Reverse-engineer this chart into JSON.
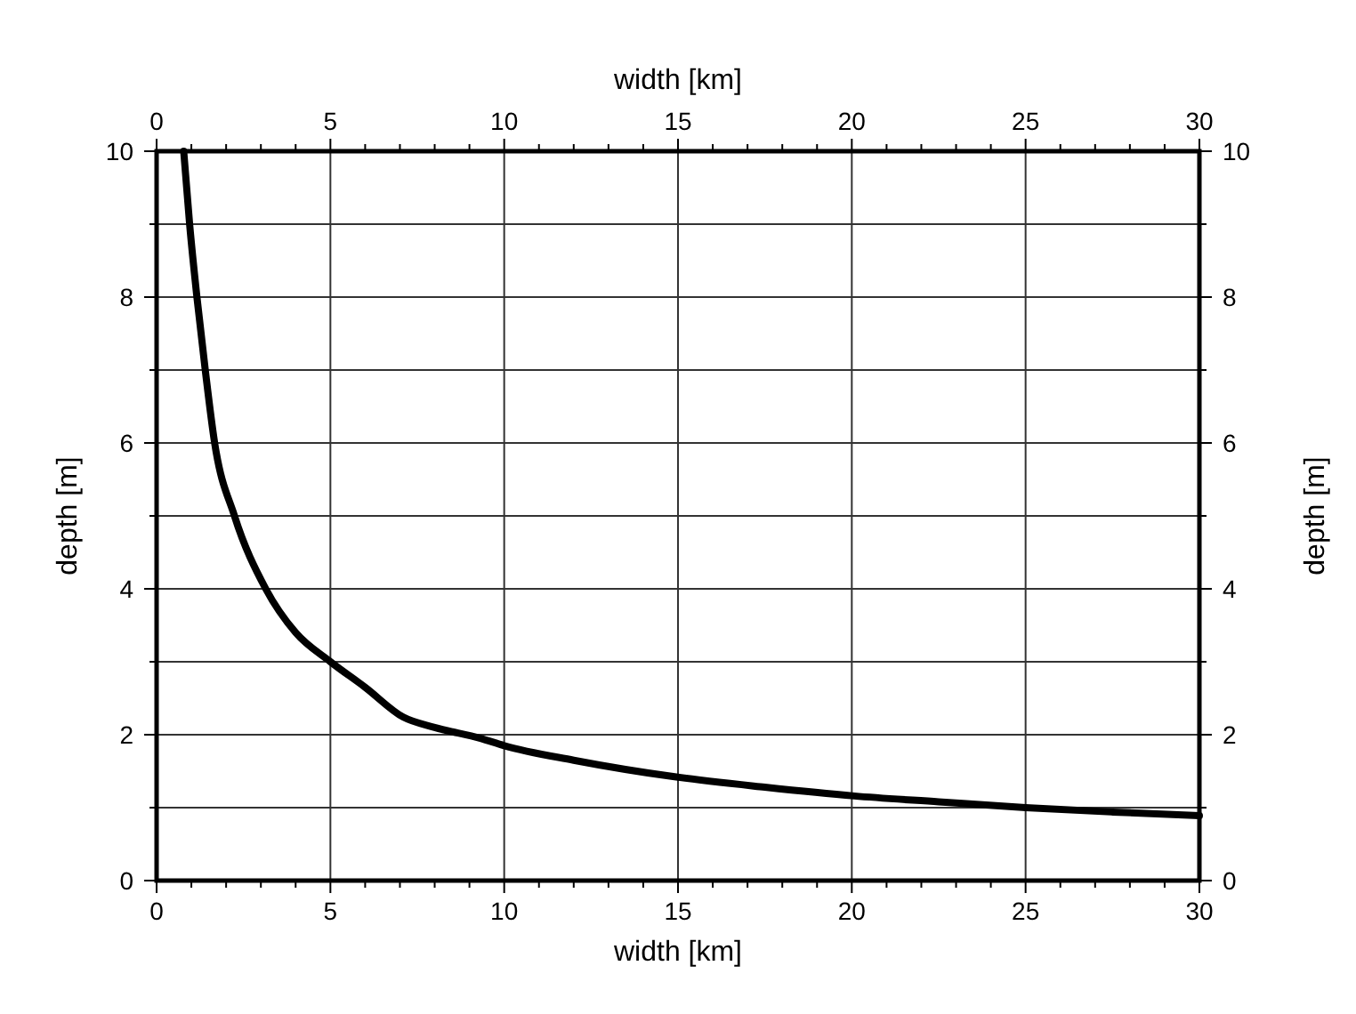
{
  "chart_data": {
    "type": "line",
    "xlabel": "width [km]",
    "ylabel": "depth [m]",
    "x2label": "width [km]",
    "y2label": "depth [m]",
    "x": [
      0.78,
      0.95,
      1.16,
      1.4,
      1.67,
      2.24,
      3.14,
      4,
      5,
      6,
      7.1,
      8,
      9.32,
      10,
      12,
      14.95,
      17.5,
      20.07,
      22.5,
      25,
      27.5,
      30
    ],
    "series": [
      {
        "color": "#000000",
        "values": [
          10,
          9,
          8,
          7,
          6,
          5,
          4,
          3.4,
          3,
          2.65,
          2.24,
          2.1,
          1.95,
          1.85,
          1.65,
          1.42,
          1.28,
          1.16,
          1.08,
          1,
          0.94,
          0.89
        ]
      }
    ],
    "xlim": [
      0,
      30
    ],
    "ylim": [
      0,
      10
    ],
    "x2lim": [
      0,
      30
    ],
    "y2lim": [
      0,
      10
    ],
    "xticks": [
      0,
      {
        "value": 1,
        "label": null
      },
      {
        "value": 2,
        "label": null
      },
      {
        "value": 3,
        "label": null
      },
      {
        "value": 4,
        "label": null
      },
      5,
      {
        "value": 6,
        "label": null
      },
      {
        "value": 7,
        "label": null
      },
      {
        "value": 8,
        "label": null
      },
      {
        "value": 9,
        "label": null
      },
      10,
      {
        "value": 11,
        "label": null
      },
      {
        "value": 12,
        "label": null
      },
      {
        "value": 13,
        "label": null
      },
      {
        "value": 14,
        "label": null
      },
      15,
      {
        "value": 16,
        "label": null
      },
      {
        "value": 17,
        "label": null
      },
      {
        "value": 18,
        "label": null
      },
      {
        "value": 19,
        "label": null
      },
      20,
      {
        "value": 21,
        "label": null
      },
      {
        "value": 22,
        "label": null
      },
      {
        "value": 23,
        "label": null
      },
      {
        "value": 24,
        "label": null
      },
      25,
      {
        "value": 26,
        "label": null
      },
      {
        "value": 27,
        "label": null
      },
      {
        "value": 28,
        "label": null
      },
      {
        "value": 29,
        "label": null
      },
      30
    ],
    "x2ticks": [
      0,
      {
        "value": 1,
        "label": null
      },
      {
        "value": 2,
        "label": null
      },
      {
        "value": 3,
        "label": null
      },
      {
        "value": 4,
        "label": null
      },
      5,
      {
        "value": 6,
        "label": null
      },
      {
        "value": 7,
        "label": null
      },
      {
        "value": 8,
        "label": null
      },
      {
        "value": 9,
        "label": null
      },
      10,
      {
        "value": 11,
        "label": null
      },
      {
        "value": 12,
        "label": null
      },
      {
        "value": 13,
        "label": null
      },
      {
        "value": 14,
        "label": null
      },
      15,
      {
        "value": 16,
        "label": null
      },
      {
        "value": 17,
        "label": null
      },
      {
        "value": 18,
        "label": null
      },
      {
        "value": 19,
        "label": null
      },
      20,
      {
        "value": 21,
        "label": null
      },
      {
        "value": 22,
        "label": null
      },
      {
        "value": 23,
        "label": null
      },
      {
        "value": 24,
        "label": null
      },
      25,
      {
        "value": 26,
        "label": null
      },
      {
        "value": 27,
        "label": null
      },
      {
        "value": 28,
        "label": null
      },
      {
        "value": 29,
        "label": null
      },
      30
    ],
    "yticks": [
      0,
      {
        "value": 1,
        "label": null
      },
      2,
      {
        "value": 3,
        "label": null
      },
      4,
      {
        "value": 5,
        "label": null
      },
      6,
      {
        "value": 7,
        "label": null
      },
      8,
      {
        "value": 9,
        "label": null
      },
      10
    ],
    "y2ticks": [
      0,
      {
        "value": 1,
        "label": null
      },
      2,
      {
        "value": 3,
        "label": null
      },
      4,
      {
        "value": 5,
        "label": null
      },
      6,
      {
        "value": 7,
        "label": null
      },
      8,
      {
        "value": 9,
        "label": null
      },
      10
    ],
    "grid": true,
    "marker": "none",
    "line_style": "solid"
  }
}
